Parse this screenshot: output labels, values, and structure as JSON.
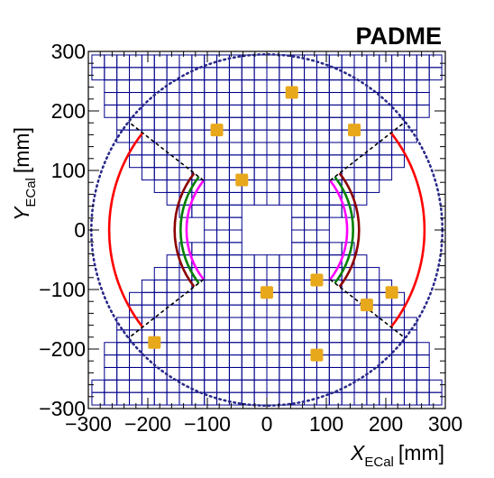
{
  "title": "PADME",
  "x_axis": {
    "symbol": "X",
    "subscript": "ECal",
    "unit": "[mm]",
    "range": [
      -300,
      300
    ],
    "ticks": [
      -300,
      -200,
      -100,
      0,
      100,
      200,
      300
    ]
  },
  "y_axis": {
    "symbol": "Y",
    "subscript": "ECal",
    "unit": "[mm]",
    "range": [
      -300,
      300
    ],
    "ticks": [
      -300,
      -200,
      -100,
      0,
      100,
      200,
      300
    ]
  },
  "grid": {
    "cell_size_mm": 21,
    "hole_half_width_mm": 50,
    "crystal_color": "#00008b",
    "row_half_extents_mm": [
      105,
      147,
      168,
      189,
      210,
      231,
      231,
      252,
      252,
      273,
      273,
      273,
      294,
      294
    ]
  },
  "outer_dotted_circle": {
    "radius_mm": 295,
    "color": "#2a2a8a"
  },
  "hit_squares": {
    "color": "#e8a81c",
    "points_mm": [
      [
        42,
        231
      ],
      [
        -84,
        168
      ],
      [
        147,
        168
      ],
      [
        -42,
        84
      ],
      [
        84,
        -84
      ],
      [
        0,
        -105
      ],
      [
        210,
        -105
      ],
      [
        168,
        -126
      ],
      [
        -189,
        -189
      ],
      [
        84,
        -210
      ]
    ]
  },
  "arcs": {
    "angle_limit_deg": 38,
    "series": [
      {
        "radius_mm": 265,
        "color": "#ff0000",
        "side": "both"
      },
      {
        "radius_mm": 155,
        "color": "#8b0000",
        "side": "both"
      },
      {
        "radius_mm": 145,
        "color": "#008000",
        "side": "both"
      },
      {
        "radius_mm": 135,
        "color": "#ff00ff",
        "side": "both"
      }
    ],
    "boundary_line_color": "#000000",
    "boundary_inner_radius_mm": 135,
    "boundary_outer_radius_mm": 295
  }
}
